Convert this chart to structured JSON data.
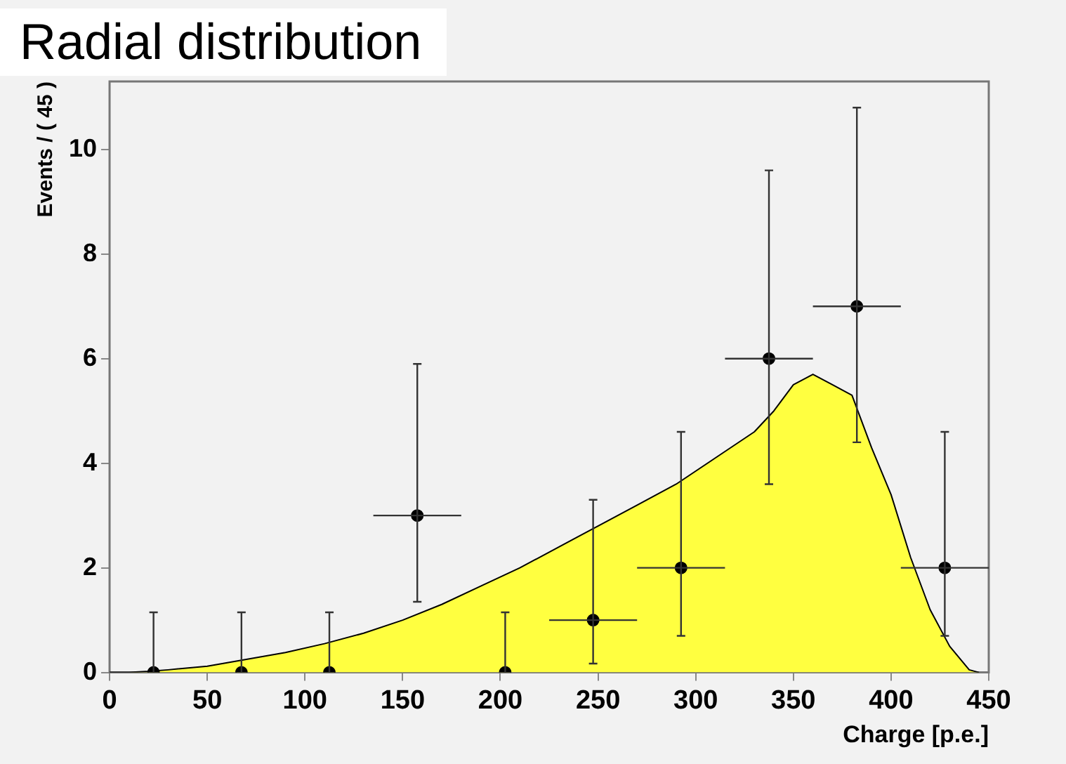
{
  "chart_data": {
    "type": "scatter",
    "title": "Radial distribution",
    "xlabel": "Charge [p.e.]",
    "ylabel": "Events / ( 45 )",
    "xlim": [
      0,
      450
    ],
    "xticks": [
      0,
      50,
      100,
      150,
      200,
      250,
      300,
      350,
      400,
      450
    ],
    "ylim": [
      0,
      11.3
    ],
    "yticks": [
      0,
      2,
      4,
      6,
      8,
      10
    ],
    "grid": false,
    "legend": false,
    "series": [
      {
        "type": "area",
        "color": "#ffff40",
        "x": [
          0,
          10,
          20,
          30,
          50,
          70,
          90,
          110,
          130,
          150,
          170,
          190,
          210,
          230,
          250,
          270,
          290,
          310,
          330,
          340,
          350,
          360,
          370,
          380,
          385,
          390,
          400,
          410,
          420,
          430,
          440,
          445
        ],
        "values": [
          0,
          0,
          0.02,
          0.05,
          0.12,
          0.25,
          0.38,
          0.55,
          0.75,
          1.0,
          1.3,
          1.65,
          2.0,
          2.4,
          2.8,
          3.2,
          3.6,
          4.1,
          4.6,
          5.0,
          5.5,
          5.7,
          5.5,
          5.3,
          4.8,
          4.3,
          3.4,
          2.2,
          1.2,
          0.5,
          0.05,
          0
        ]
      },
      {
        "type": "scatter",
        "color": "#000000",
        "marker": "circle",
        "x": [
          22.5,
          67.5,
          112.5,
          157.5,
          202.5,
          247.5,
          292.5,
          337.5,
          382.5,
          427.5
        ],
        "values": [
          0,
          0,
          0,
          3,
          0,
          1,
          2,
          6,
          7,
          2
        ],
        "errors": [
          [
            0,
            1.15
          ],
          [
            0,
            1.15
          ],
          [
            0,
            1.15
          ],
          [
            1.35,
            5.9
          ],
          [
            0,
            1.15
          ],
          [
            0.17,
            3.3
          ],
          [
            0.7,
            4.6
          ],
          [
            3.6,
            9.6
          ],
          [
            4.4,
            10.8
          ],
          [
            0.7,
            4.6
          ]
        ],
        "xerrors": [
          null,
          null,
          null,
          22.5,
          null,
          22.5,
          22.5,
          22.5,
          22.5,
          22.5
        ]
      }
    ]
  }
}
